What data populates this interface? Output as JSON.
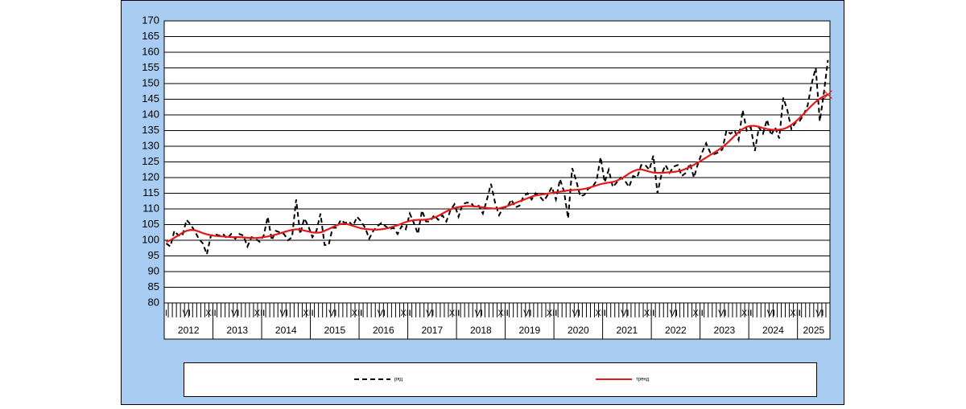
{
  "chart_data": {
    "type": "line",
    "x": [
      "2012-01",
      "2012-02",
      "2012-03",
      "2012-04",
      "2012-05",
      "2012-06",
      "2012-07",
      "2012-08",
      "2012-09",
      "2012-10",
      "2012-11",
      "2012-12",
      "2013-01",
      "2013-02",
      "2013-03",
      "2013-04",
      "2013-05",
      "2013-06",
      "2013-07",
      "2013-08",
      "2013-09",
      "2013-10",
      "2013-11",
      "2013-12",
      "2014-01",
      "2014-02",
      "2014-03",
      "2014-04",
      "2014-05",
      "2014-06",
      "2014-07",
      "2014-08",
      "2014-09",
      "2014-10",
      "2014-11",
      "2014-12",
      "2015-01",
      "2015-02",
      "2015-03",
      "2015-04",
      "2015-05",
      "2015-06",
      "2015-07",
      "2015-08",
      "2015-09",
      "2015-10",
      "2015-11",
      "2015-12",
      "2016-01",
      "2016-02",
      "2016-03",
      "2016-04",
      "2016-05",
      "2016-06",
      "2016-07",
      "2016-08",
      "2016-09",
      "2016-10",
      "2016-11",
      "2016-12",
      "2017-01",
      "2017-02",
      "2017-03",
      "2017-04",
      "2017-05",
      "2017-06",
      "2017-07",
      "2017-08",
      "2017-09",
      "2017-10",
      "2017-11",
      "2017-12",
      "2018-01",
      "2018-02",
      "2018-03",
      "2018-04",
      "2018-05",
      "2018-06",
      "2018-07",
      "2018-08",
      "2018-09",
      "2018-10",
      "2018-11",
      "2018-12",
      "2019-01",
      "2019-02",
      "2019-03",
      "2019-04",
      "2019-05",
      "2019-06",
      "2019-07",
      "2019-08",
      "2019-09",
      "2019-10",
      "2019-11",
      "2019-12",
      "2020-01",
      "2020-02",
      "2020-03",
      "2020-04",
      "2020-05",
      "2020-06",
      "2020-07",
      "2020-08",
      "2020-09",
      "2020-10",
      "2020-11",
      "2020-12",
      "2021-01",
      "2021-02",
      "2021-03",
      "2021-04",
      "2021-05",
      "2021-06",
      "2021-07",
      "2021-08",
      "2021-09",
      "2021-10",
      "2021-11",
      "2021-12",
      "2022-01",
      "2022-02",
      "2022-03",
      "2022-04",
      "2022-05",
      "2022-06",
      "2022-07",
      "2022-08",
      "2022-09",
      "2022-10",
      "2022-11",
      "2022-12",
      "2023-01",
      "2023-02",
      "2023-03",
      "2023-04",
      "2023-05",
      "2023-06",
      "2023-07",
      "2023-08",
      "2023-09",
      "2023-10",
      "2023-11",
      "2023-12",
      "2024-01",
      "2024-02",
      "2024-03",
      "2024-04",
      "2024-05",
      "2024-06",
      "2024-07",
      "2024-08",
      "2024-09",
      "2024-10",
      "2024-11",
      "2024-12",
      "2025-01",
      "2025-02",
      "2025-03",
      "2025-04",
      "2025-05",
      "2025-06",
      "2025-07",
      "2025-08"
    ],
    "series": [
      {
        "name": "ряд",
        "color": "#000000",
        "dash": true,
        "values": [
          99,
          98,
          103,
          101.5,
          101.5,
          106.5,
          105,
          103,
          100.5,
          99,
          95.5,
          101.5,
          102,
          101.5,
          102,
          100.5,
          102,
          100.5,
          102,
          101.5,
          98,
          101,
          100.5,
          99.5,
          101.5,
          107.5,
          100,
          103,
          102.5,
          102,
          100,
          101,
          113,
          102,
          107,
          104.5,
          101,
          103,
          108.5,
          98.5,
          98.5,
          104,
          104,
          106.5,
          105.5,
          106,
          104.5,
          107.5,
          106,
          104,
          100.5,
          103,
          104.5,
          105.5,
          104.5,
          103.5,
          104,
          102,
          104.5,
          103.5,
          108.5,
          105.5,
          102,
          109.5,
          106,
          106,
          108,
          106.5,
          108,
          106,
          109.5,
          111.5,
          107.5,
          111.5,
          112,
          112,
          110.5,
          111,
          108.5,
          113,
          118,
          112,
          108,
          110.5,
          110.5,
          113,
          110.5,
          111,
          114,
          115,
          113,
          115,
          114,
          112.5,
          114.5,
          117,
          113,
          119.5,
          115.5,
          107,
          123,
          119,
          114,
          114.5,
          116.5,
          117,
          119,
          126.5,
          118.5,
          122.5,
          117,
          118.5,
          120,
          119,
          117,
          120.5,
          120,
          124,
          124,
          122.5,
          127,
          115,
          121,
          124,
          121.5,
          123.5,
          124,
          120.5,
          121.5,
          124.5,
          120,
          124.5,
          128,
          131,
          128,
          127.5,
          128,
          129,
          135,
          134,
          135,
          132,
          141.5,
          135,
          136,
          128.5,
          136,
          134,
          138.5,
          133.5,
          136,
          132.5,
          145.5,
          141.5,
          135.5,
          137.5,
          138,
          140,
          143,
          150,
          155,
          138,
          147,
          157.5
        ]
      },
      {
        "name": "тренд",
        "color": "#e31a1c",
        "dash": false,
        "marker_last": true,
        "values": [
          99.5,
          100,
          100.8,
          101.6,
          102.4,
          103,
          103.3,
          103.2,
          102.8,
          102.3,
          101.9,
          101.6,
          101.4,
          101.3,
          101.2,
          101.1,
          101,
          101,
          101,
          100.9,
          100.8,
          100.7,
          100.7,
          100.8,
          101,
          101.2,
          101.5,
          101.8,
          102.2,
          102.6,
          103,
          103.3,
          103.5,
          103.4,
          103.1,
          102.8,
          102.5,
          102.4,
          102.5,
          103,
          103.6,
          104.2,
          104.8,
          105.2,
          105.3,
          105,
          104.6,
          104.2,
          103.8,
          103.6,
          103.5,
          103.4,
          103.4,
          103.5,
          103.7,
          104,
          104.4,
          104.8,
          105.3,
          105.8,
          106.2,
          106.4,
          106.5,
          106.5,
          106.6,
          106.8,
          107.2,
          107.8,
          108.5,
          109.2,
          109.8,
          110.3,
          110.6,
          110.8,
          110.9,
          110.9,
          110.8,
          110.7,
          110.5,
          110.3,
          110.2,
          110.1,
          110.2,
          110.5,
          110.9,
          111.4,
          111.9,
          112.4,
          112.9,
          113.4,
          113.9,
          114.3,
          114.5,
          114.7,
          114.9,
          115.1,
          115.3,
          115.5,
          115.7,
          115.9,
          116,
          116.1,
          116.2,
          116.4,
          116.7,
          117.1,
          117.5,
          117.9,
          118.2,
          118.4,
          118.6,
          119,
          119.6,
          120.4,
          121.3,
          122,
          122.5,
          122.6,
          122.3,
          121.9,
          121.6,
          121.5,
          121.5,
          121.6,
          121.7,
          121.8,
          122,
          122.3,
          122.8,
          123.4,
          124.1,
          124.8,
          125.6,
          126.4,
          127.2,
          128,
          128.8,
          129.7,
          130.8,
          132,
          133.3,
          134.5,
          135.5,
          136.2,
          136.5,
          136.5,
          136.2,
          135.8,
          135.5,
          135.3,
          135.2,
          135.3,
          135.5,
          136,
          136.8,
          137.8,
          139,
          140.3,
          141.7,
          143,
          144.2,
          145.2,
          146,
          146.5
        ]
      }
    ],
    "ylim": [
      80,
      170
    ],
    "yticks": [
      80,
      85,
      90,
      95,
      100,
      105,
      110,
      115,
      120,
      125,
      130,
      135,
      140,
      145,
      150,
      155,
      160,
      165,
      170
    ],
    "month_ticks": [
      {
        "value": 1,
        "label": "I"
      },
      {
        "value": 6,
        "label": "VI"
      },
      {
        "value": 12,
        "label": "XII"
      }
    ],
    "years": [
      2012,
      2013,
      2014,
      2015,
      2016,
      2017,
      2018,
      2019,
      2020,
      2021,
      2022,
      2023,
      2024,
      2025
    ],
    "grid": true
  }
}
